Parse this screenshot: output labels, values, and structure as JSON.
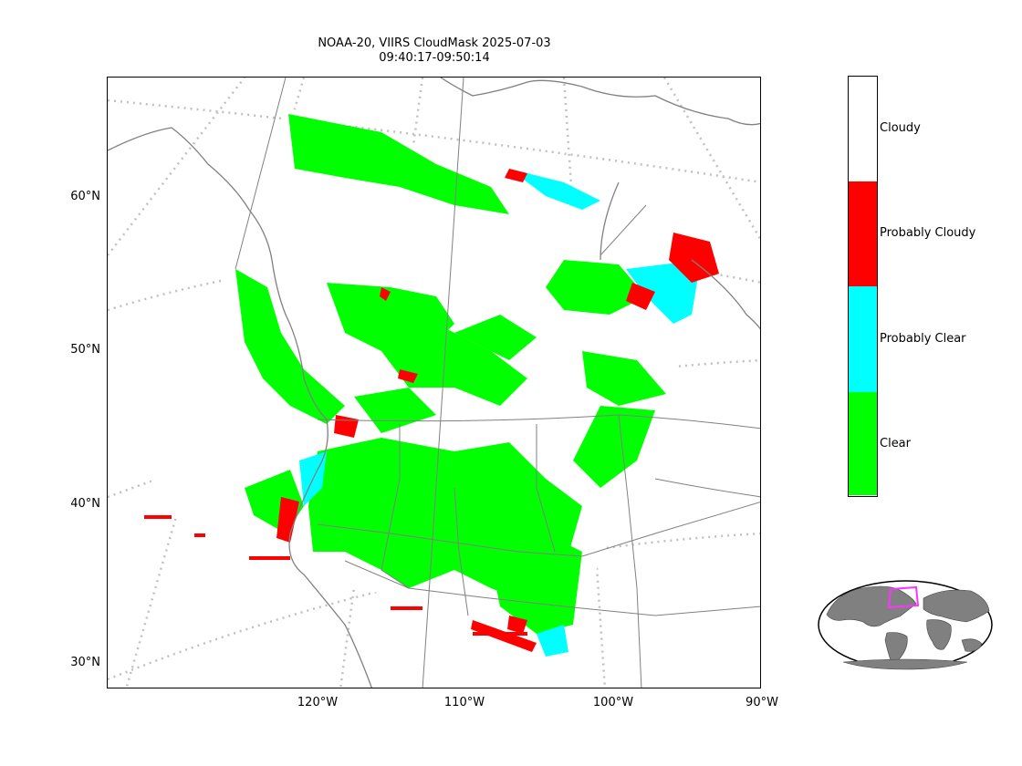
{
  "title": {
    "line1": "NOAA-20, VIIRS CloudMask 2025-07-03",
    "line2": "09:40:17-09:50:14"
  },
  "lat_ticks": [
    "60°N",
    "50°N",
    "40°N",
    "30°N"
  ],
  "lon_ticks": [
    "120°W",
    "110°W",
    "100°W",
    "90°W"
  ],
  "colorbar": {
    "categories": [
      {
        "label": "Cloudy",
        "color": "#ffffff"
      },
      {
        "label": "Probably Cloudy",
        "color": "#ff0000"
      },
      {
        "label": "Probably Clear",
        "color": "#00ffff"
      },
      {
        "label": "Clear",
        "color": "#00ff00"
      }
    ]
  },
  "colors": {
    "coastline": "#808080",
    "graticule": "#c0c0c0",
    "land_inset": "#808080",
    "inset_box": "#ff33ff"
  },
  "map": {
    "projection": "oblique conic (Lambert-like)",
    "graticule": "dotted",
    "inset": "global locator with swath box"
  }
}
